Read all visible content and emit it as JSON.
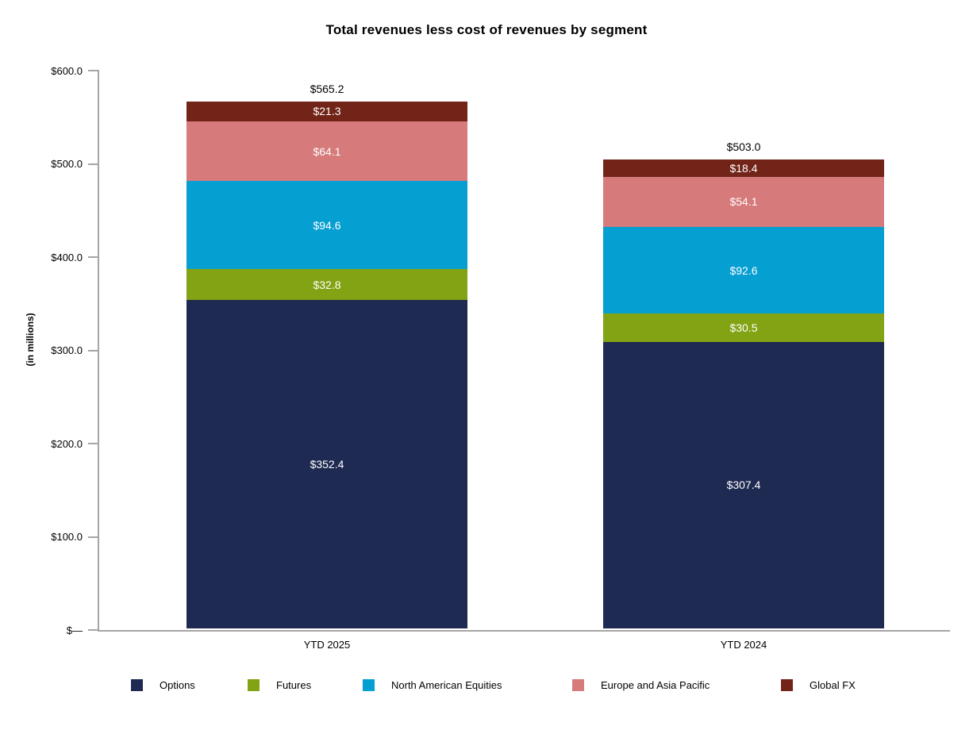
{
  "title": "Total revenues less cost of revenues by segment",
  "y_axis_title": "(in millions)",
  "axis_color": "#A6A6A6",
  "chart_data": {
    "type": "bar",
    "stacked": true,
    "title": "Total revenues less cost of revenues by segment",
    "ylabel": "(in millions)",
    "xlabel": "",
    "ylim": [
      0,
      600
    ],
    "grid": false,
    "legend_position": "bottom",
    "categories": [
      "YTD 2025",
      "YTD 2024"
    ],
    "series": [
      {
        "name": "Options",
        "color": "#1F2A52",
        "values": [
          352.4,
          307.4
        ],
        "value_labels": [
          "$352.4",
          "$307.4"
        ]
      },
      {
        "name": "Futures",
        "color": "#82A313",
        "values": [
          32.8,
          30.5
        ],
        "value_labels": [
          "$32.8",
          "$30.5"
        ]
      },
      {
        "name": "North American Equities",
        "color": "#069FD1",
        "values": [
          94.6,
          92.6
        ],
        "value_labels": [
          "$94.6",
          "$92.6"
        ]
      },
      {
        "name": "Europe and Asia Pacific",
        "color": "#D67A7B",
        "values": [
          64.1,
          54.1
        ],
        "value_labels": [
          "$64.1",
          "$54.1"
        ]
      },
      {
        "name": "Global FX",
        "color": "#722419",
        "values": [
          21.3,
          18.4
        ],
        "value_labels": [
          "$21.3",
          "$18.4"
        ]
      }
    ],
    "totals": [
      565.2,
      503.0
    ],
    "total_labels": [
      "$565.2",
      "$503.0"
    ],
    "yticks": [
      {
        "value": 600,
        "label": "$600.0"
      },
      {
        "value": 500,
        "label": "$500.0"
      },
      {
        "value": 400,
        "label": "$400.0"
      },
      {
        "value": 300,
        "label": "$300.0"
      },
      {
        "value": 200,
        "label": "$200.0"
      },
      {
        "value": 100,
        "label": "$100.0"
      },
      {
        "value": 0,
        "label": "$—"
      }
    ],
    "legend": [
      "Options",
      "Futures",
      "North American Equities",
      "Europe and Asia Pacific",
      "Global FX"
    ]
  }
}
